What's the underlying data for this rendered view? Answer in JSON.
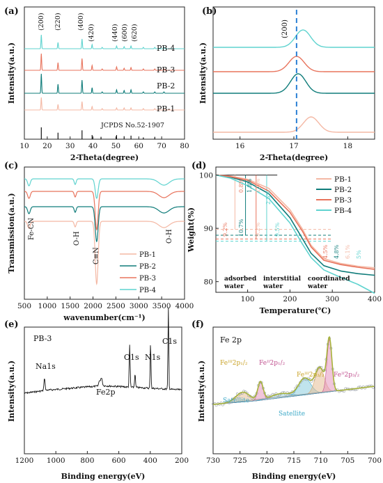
{
  "chart_data": [
    {
      "panel": "(a)",
      "type": "line",
      "xlabel": "2-Theta(degree)",
      "ylabel": "Intensity(a.u.)",
      "xlim": [
        10,
        80
      ],
      "xticks": [
        10,
        20,
        30,
        40,
        50,
        60,
        70,
        80
      ],
      "peaks": [
        17.4,
        24.7,
        35.2,
        39.6,
        50.3,
        53.6,
        56.6
      ],
      "peak_labels": [
        {
          "label": "(200)",
          "x": 17.4
        },
        {
          "label": "(220)",
          "x": 24.7
        },
        {
          "label": "(400)",
          "x": 35.2
        },
        {
          "label": "(420)",
          "x": 39.6
        },
        {
          "label": "(440)",
          "x": 50.3
        },
        {
          "label": "(600)",
          "x": 53.6
        },
        {
          "label": "(620)",
          "x": 56.6
        }
      ],
      "series": [
        {
          "name": "PB-4",
          "color": "#5fd3cf"
        },
        {
          "name": "PB-3",
          "color": "#e8735c"
        },
        {
          "name": "PB-2",
          "color": "#0f7c7a"
        },
        {
          "name": "PB-1",
          "color": "#f4b8a4"
        }
      ],
      "reference": {
        "label": "JCPDS No.52-1907",
        "sticks": [
          {
            "x": 17.4,
            "h": 1.0
          },
          {
            "x": 24.7,
            "h": 0.55
          },
          {
            "x": 35.2,
            "h": 0.75
          },
          {
            "x": 39.6,
            "h": 0.35
          },
          {
            "x": 43.5,
            "h": 0.2
          },
          {
            "x": 50.3,
            "h": 0.35
          },
          {
            "x": 53.6,
            "h": 0.25
          },
          {
            "x": 56.6,
            "h": 0.3
          },
          {
            "x": 62.0,
            "h": 0.15
          },
          {
            "x": 67.0,
            "h": 0.2
          }
        ]
      }
    },
    {
      "panel": "(b)",
      "type": "line",
      "xlabel": "2-Theta(degree)",
      "ylabel": "Intensity(a.u.)",
      "xlim": [
        15.5,
        18.5
      ],
      "xticks": [
        16,
        17,
        18
      ],
      "dashed_line_x": 17.05,
      "annotation": "(200)",
      "series": [
        {
          "name": "PB-4",
          "color": "#5fd3cf",
          "peak_x": 17.17
        },
        {
          "name": "PB-3",
          "color": "#e8735c",
          "peak_x": 17.05
        },
        {
          "name": "PB-2",
          "color": "#0f7c7a",
          "peak_x": 17.08
        },
        {
          "name": "PB-1",
          "color": "#f4b8a4",
          "peak_x": 17.32
        }
      ]
    },
    {
      "panel": "(c)",
      "type": "line",
      "xlabel": "wavenumber(cm⁻¹)",
      "ylabel": "Transmission(a.u.)",
      "xlim": [
        500,
        4000
      ],
      "xticks": [
        500,
        1000,
        1500,
        2000,
        2500,
        3000,
        3500,
        4000
      ],
      "annotations": [
        {
          "label": "Fe-CN",
          "x": 600
        },
        {
          "label": "O-H",
          "x": 1610
        },
        {
          "label": "C≡N",
          "x": 2080
        },
        {
          "label": "O-H",
          "x": 3620
        }
      ],
      "series": [
        {
          "name": "PB-1",
          "color": "#f4b8a4"
        },
        {
          "name": "PB-2",
          "color": "#0f7c7a"
        },
        {
          "name": "PB-3",
          "color": "#e8735c"
        },
        {
          "name": "PB-4",
          "color": "#5fd3cf"
        }
      ]
    },
    {
      "panel": "(d)",
      "type": "line",
      "xlabel": "Temperature(℃)",
      "ylabel": "Weight(%)",
      "xlim": [
        25,
        400
      ],
      "ylim": [
        78,
        101.5
      ],
      "xticks": [
        100,
        200,
        300,
        400
      ],
      "yticks": [
        80,
        90,
        100
      ],
      "regions": [
        "adsorbed\nwater",
        "interstitial\nwater",
        "coordinated\nwater"
      ],
      "series": [
        {
          "name": "PB-1",
          "color": "#f4b8a4",
          "x": [
            25,
            60,
            100,
            150,
            200,
            230,
            250,
            280,
            320,
            360,
            400
          ],
          "y": [
            100,
            99.8,
            99.2,
            97.5,
            93.5,
            89.8,
            86.8,
            84.3,
            83.4,
            82.9,
            82.6
          ]
        },
        {
          "name": "PB-2",
          "color": "#0f7c7a",
          "x": [
            25,
            60,
            100,
            150,
            200,
            230,
            250,
            280,
            320,
            360,
            400
          ],
          "y": [
            100,
            99.6,
            98.7,
            96.5,
            92.0,
            88.0,
            85.3,
            83.0,
            82.0,
            81.5,
            81.2
          ]
        },
        {
          "name": "PB-3",
          "color": "#e8735c",
          "x": [
            25,
            60,
            100,
            150,
            200,
            230,
            250,
            280,
            320,
            360,
            400
          ],
          "y": [
            100,
            99.7,
            99.0,
            97.0,
            93.0,
            89.4,
            86.5,
            84.0,
            83.2,
            82.7,
            82.3
          ]
        },
        {
          "name": "PB-4",
          "color": "#5fd3cf",
          "x": [
            25,
            60,
            100,
            150,
            200,
            230,
            250,
            280,
            320,
            360,
            400
          ],
          "y": [
            100,
            99.4,
            98.0,
            95.6,
            91.0,
            87.0,
            84.5,
            82.2,
            80.8,
            79.5,
            77.8
          ]
        }
      ],
      "dashed_levels": [
        {
          "y": 89.8,
          "color": "#f4b8a4"
        },
        {
          "y": 88.7,
          "color": "#0f7c7a"
        },
        {
          "y": 88.0,
          "color": "#e8735c"
        },
        {
          "y": 87.6,
          "color": "#5fd3cf"
        }
      ],
      "step_labels_top": [
        {
          "label": "0.8%",
          "color": "#e8735c"
        },
        {
          "label": "1.8%",
          "color": "#0f7c7a"
        },
        {
          "label": "1.0%",
          "color": "#f4b8a4"
        },
        {
          "label": "2.5%",
          "color": "#5fd3cf"
        }
      ],
      "step_labels_mid": [
        {
          "label": "9.2%",
          "color": "#e8735c"
        },
        {
          "label": "10.7%",
          "color": "#0f7c7a"
        },
        {
          "label": "9.2%",
          "color": "#f4b8a4"
        },
        {
          "label": "9.5%",
          "color": "#5fd3cf"
        }
      ],
      "step_labels_bottom": [
        {
          "label": "4.5%",
          "color": "#e8735c"
        },
        {
          "label": "4.8%",
          "color": "#0f7c7a"
        },
        {
          "label": "6.1%",
          "color": "#f4b8a4"
        },
        {
          "label": "5%",
          "color": "#5fd3cf"
        }
      ]
    },
    {
      "panel": "(e)",
      "type": "line",
      "title": "PB-3",
      "xlabel": "Binding energy(eV)",
      "ylabel": "Intensity(a.u.)",
      "xlim": [
        1200,
        200
      ],
      "xticks": [
        1200,
        1000,
        800,
        600,
        400,
        200
      ],
      "peak_labels": [
        {
          "label": "Na1s",
          "x": 1072
        },
        {
          "label": "Fe2p",
          "x": 710
        },
        {
          "label": "O1s",
          "x": 531
        },
        {
          "label": "N1s",
          "x": 398
        },
        {
          "label": "C1s",
          "x": 285
        }
      ]
    },
    {
      "panel": "(f)",
      "type": "line",
      "title": "Fe 2p",
      "xlabel": "Binding energy(eV)",
      "ylabel": "Intensity(a.u.)",
      "xlim": [
        730,
        700
      ],
      "xticks": [
        730,
        725,
        720,
        715,
        710,
        705,
        700
      ],
      "annotations": [
        {
          "label": "Feᴵᴵᴵ 2p₁/₂"
        },
        {
          "label": "Feᴵᴵ 2p₁/₂"
        },
        {
          "label": "Feᴵᴵᴵ 2p₃/₂"
        },
        {
          "label": "Feᴵᴵ 2p₃/₂"
        },
        {
          "label": "Satellite"
        },
        {
          "label": "Satellite"
        }
      ]
    }
  ],
  "labels": {
    "a": {
      "panel": "(a)",
      "ylabel": "Intensity(a.u.)",
      "xlabel": "2-Theta(degree)",
      "s4": "PB-4",
      "s3": "PB-3",
      "s2": "PB-2",
      "s1": "PB-1",
      "ref": "JCPDS No.52-1907",
      "p200": "(200)",
      "p220": "(220)",
      "p400": "(400)",
      "p420": "(420)",
      "p440": "(440)",
      "p600": "(600)",
      "p620": "(620)",
      "ticks": [
        "10",
        "20",
        "30",
        "40",
        "50",
        "60",
        "70",
        "80"
      ]
    },
    "b": {
      "panel": "(b)",
      "ylabel": "Intensity(a.u.)",
      "xlabel": "2-Theta(degree)",
      "ann": "(200)",
      "ticks": [
        "16",
        "17",
        "18"
      ]
    },
    "c": {
      "panel": "(c)",
      "ylabel": "Transmission(a.u.)",
      "xlabel": "wavenumber(cm⁻¹)",
      "fecn": "Fe-CN",
      "oh1": "O-H",
      "cn": "C≡N",
      "oh2": "O-H",
      "s1": "PB-1",
      "s2": "PB-2",
      "s3": "PB-3",
      "s4": "PB-4",
      "ticks": [
        "500",
        "1000",
        "1500",
        "2000",
        "2500",
        "3000",
        "3500",
        "4000"
      ]
    },
    "d": {
      "panel": "(d)",
      "ylabel": "Weight(%)",
      "xlabel": "Temperature(℃)",
      "s1": "PB-1",
      "s2": "PB-2",
      "s3": "PB-3",
      "s4": "PB-4",
      "reg1a": "adsorbed",
      "reg1b": "water",
      "reg2a": "interstitial",
      "reg2b": "water",
      "reg3a": "coordinated",
      "reg3b": "water",
      "yticks": [
        "80",
        "90",
        "100"
      ],
      "xticks": [
        "100",
        "200",
        "300",
        "400"
      ]
    },
    "e": {
      "panel": "(e)",
      "title": "PB-3",
      "ylabel": "Intensity(a.u.)",
      "xlabel": "Binding energy(eV)",
      "na": "Na1s",
      "fe": "Fe2p",
      "o": "O1s",
      "n": "N1s",
      "c": "C1s",
      "ticks": [
        "1200",
        "1000",
        "800",
        "600",
        "400",
        "200"
      ]
    },
    "f": {
      "panel": "(f)",
      "title": "Fe 2p",
      "ylabel": "Intensity(a.u.)",
      "xlabel": "Binding energy(eV)",
      "fe3_12": "Feᴵᴵᴵ2p₁/₂",
      "fe2_12": "Feᴵᴵ2p₁/₂",
      "fe3_32": "Feᴵᴵᴵ2p₃/₂",
      "fe2_32": "Feᴵᴵ2p₃/₂",
      "sat1": "Satellite",
      "sat2": "Satellite",
      "ticks": [
        "730",
        "725",
        "720",
        "715",
        "710",
        "705",
        "700"
      ]
    }
  }
}
